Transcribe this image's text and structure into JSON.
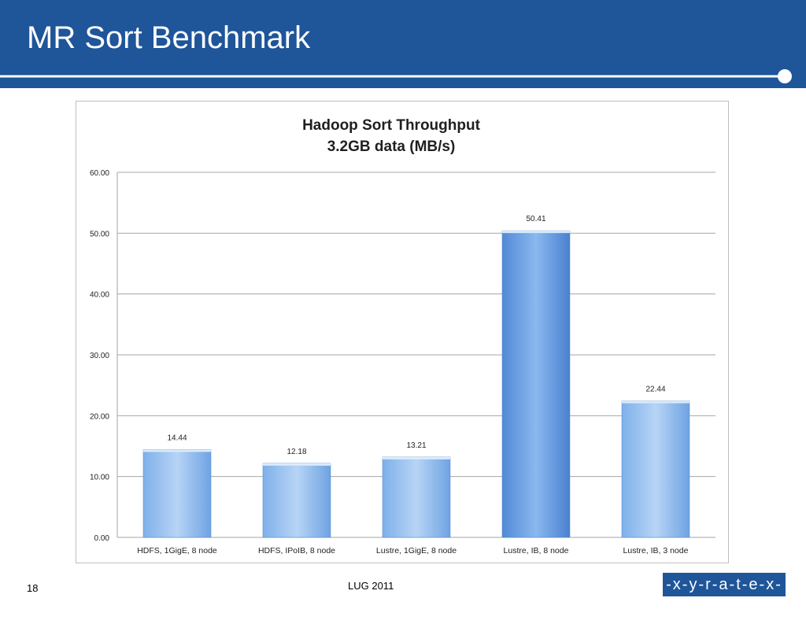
{
  "slide": {
    "title": "MR Sort Benchmark",
    "page_number": "18",
    "footer_text": "LUG 2011",
    "logo_text": "-x-y-r-a-t-e-x-•"
  },
  "colors": {
    "header_bg": "#1f5599",
    "bar_light": "#b7d4f5",
    "bar_dark": "#5289d6",
    "bar_top": "#dcebfb"
  },
  "chart_data": {
    "type": "bar",
    "title": "Hadoop Sort Throughput",
    "subtitle": "3.2GB data (MB/s)",
    "categories": [
      "HDFS, 1GigE, 8 node",
      "HDFS, IPoIB, 8 node",
      "Lustre, 1GigE, 8 node",
      "Lustre, IB, 8 node",
      "Lustre, IB, 3 node"
    ],
    "values": [
      14.44,
      12.18,
      13.21,
      50.41,
      22.44
    ],
    "value_labels": [
      "14.44",
      "12.18",
      "13.21",
      "50.41",
      "22.44"
    ],
    "yticks": [
      "0.00",
      "10.00",
      "20.00",
      "30.00",
      "40.00",
      "50.00",
      "60.00"
    ],
    "ylim": [
      0,
      60
    ],
    "grid": true,
    "legend": "none"
  }
}
